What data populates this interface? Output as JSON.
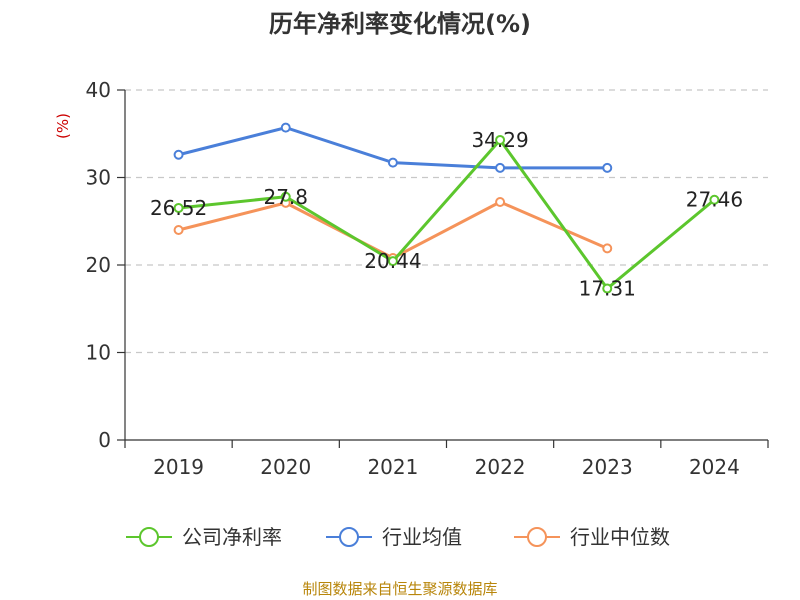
{
  "chart_data": {
    "type": "line",
    "title": "历年净利率变化情况(%)",
    "ylabel": "(%)",
    "xlabel": "",
    "categories": [
      "2019",
      "2020",
      "2021",
      "2022",
      "2023",
      "2024"
    ],
    "ylim": [
      0,
      40
    ],
    "yticks": [
      0,
      10,
      20,
      30,
      40
    ],
    "grid": true,
    "legend_position": "bottom",
    "series": [
      {
        "name": "公司净利率",
        "color": "#5cc62d",
        "values": [
          26.52,
          27.8,
          20.44,
          34.29,
          17.31,
          27.46
        ],
        "labels": [
          "26.52",
          "27.8",
          "20.44",
          "34.29",
          "17.31",
          "27.46"
        ]
      },
      {
        "name": "行业均值",
        "color": "#4a7fd9",
        "values": [
          32.6,
          35.7,
          31.7,
          31.1,
          31.1,
          null
        ]
      },
      {
        "name": "行业中位数",
        "color": "#f5935a",
        "values": [
          24.0,
          27.1,
          20.8,
          27.2,
          21.9,
          null
        ]
      }
    ]
  },
  "source": "制图数据来自恒生聚源数据库"
}
